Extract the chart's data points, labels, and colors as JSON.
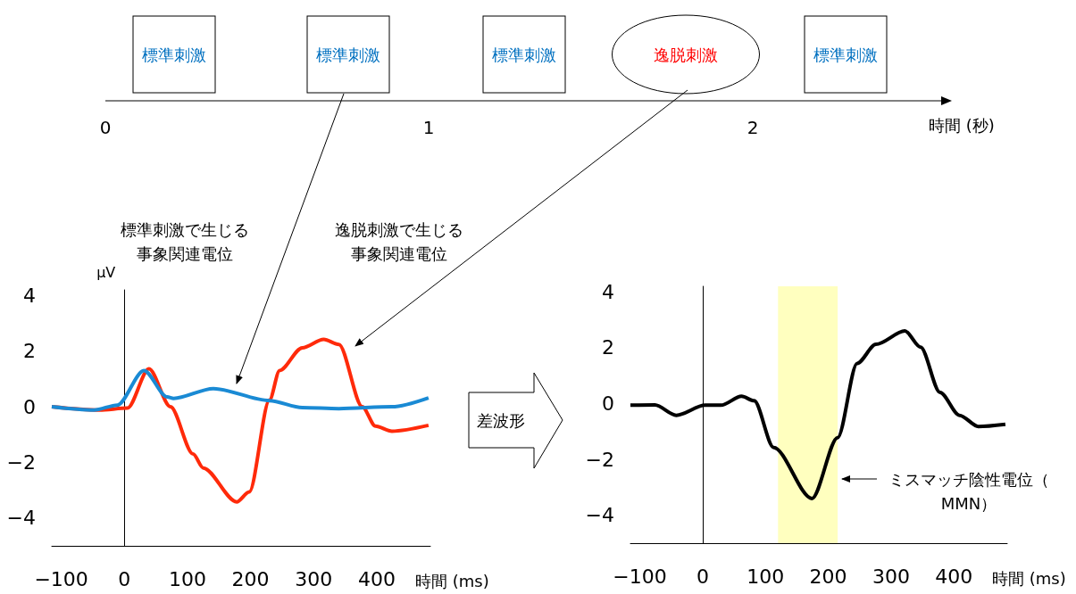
{
  "chart_data": [
    {
      "type": "other",
      "categories": [
        "標準刺激",
        "標準刺激",
        "標準刺激",
        "逸脱刺激",
        "標準刺激"
      ],
      "annotations": [
        "0",
        "1",
        "2"
      ],
      "xlabel": "時間 (秒)"
    },
    {
      "type": "line",
      "xlim": [
        -115,
        485
      ],
      "ylim": [
        -5,
        4.2
      ],
      "xticks": [
        -100,
        0,
        100,
        200,
        300,
        400
      ],
      "yticks": [
        -4,
        -2,
        0,
        2,
        4
      ],
      "xlabel": "時間 (ms)",
      "ylabel": "μV",
      "series": [
        {
          "color": "#ff2a0a",
          "x": [
            -115,
            -40,
            5,
            39,
            73,
            109,
            125,
            178,
            198,
            230,
            246,
            282,
            316,
            340,
            377,
            398,
            424,
            482
          ],
          "values": [
            0,
            -0.12,
            -0.05,
            1.36,
            0,
            -1.7,
            -2.2,
            -3.42,
            -3.06,
            0.24,
            1.3,
            2.12,
            2.42,
            2.24,
            0,
            -0.7,
            -0.88,
            -0.67
          ]
        },
        {
          "color": "#1a8ad4",
          "x": [
            -115,
            -48,
            -11,
            31,
            68,
            78,
            141,
            230,
            282,
            340,
            424,
            482
          ],
          "values": [
            0,
            -0.12,
            0.06,
            1.3,
            0.35,
            0.3,
            0.65,
            0.22,
            -0.03,
            -0.07,
            0,
            0.32
          ]
        }
      ],
      "annotations": [
        "標準刺激で生じる事象関連電位",
        "逸脱刺激で生じる事象関連電位"
      ]
    },
    {
      "type": "line",
      "xlim": [
        -115,
        485
      ],
      "ylim": [
        -5,
        4.2
      ],
      "xticks": [
        -100,
        0,
        100,
        200,
        300,
        400
      ],
      "yticks": [
        -4,
        -2,
        0,
        2,
        4
      ],
      "xlabel": "時間 (ms)",
      "series": [
        {
          "color": "#000000",
          "x": [
            -115,
            -76,
            -42,
            4,
            29,
            62,
            82,
            113,
            174,
            215,
            246,
            276,
            322,
            347,
            378,
            409,
            439,
            482
          ],
          "values": [
            -0.06,
            -0.05,
            -0.42,
            -0.06,
            -0.06,
            0.26,
            0.1,
            -1.57,
            -3.4,
            -1.22,
            1.44,
            2.12,
            2.6,
            2.02,
            0.4,
            -0.42,
            -0.82,
            -0.74
          ]
        }
      ],
      "bands": [
        {
          "axis": "x",
          "from": 120,
          "to": 215,
          "color": "#ffffbf"
        }
      ],
      "annotations": [
        "差波形",
        "ミスマッチ陰性電位（MMN）"
      ]
    }
  ]
}
